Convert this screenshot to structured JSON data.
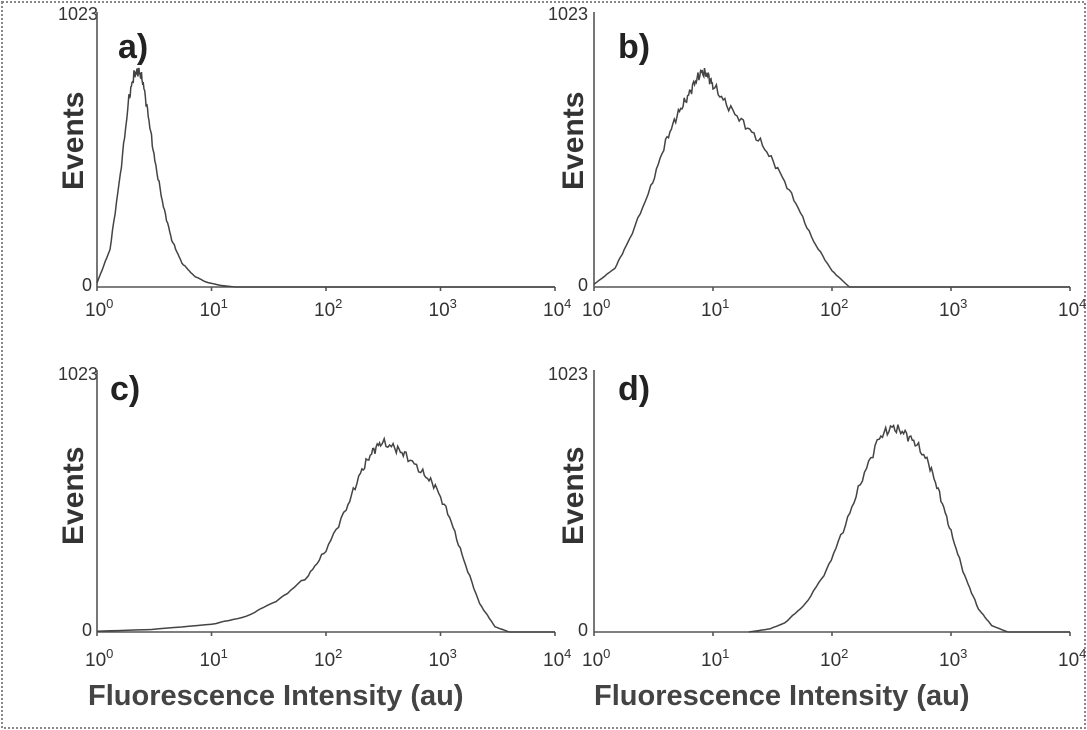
{
  "chart_data": [
    {
      "type": "line",
      "panel_label": "a)",
      "ylabel": "Events",
      "xlabel": "",
      "x_scale": "log",
      "xlim": [
        1,
        10000
      ],
      "ylim": [
        0,
        1023
      ],
      "y_tick_labels": [
        "0",
        "1023"
      ],
      "x_tick_labels": [
        "10",
        "10",
        "10",
        "10",
        "10"
      ],
      "x_tick_exponents": [
        "0",
        "1",
        "2",
        "3",
        "4"
      ],
      "series": [
        {
          "x": [
            1.0,
            1.3,
            1.6,
            1.9,
            2.1,
            2.3,
            2.5,
            2.8,
            3.2,
            3.8,
            4.5,
            5.5,
            7.0,
            9.0,
            12.0,
            16.0
          ],
          "y": [
            15,
            140,
            420,
            700,
            790,
            805,
            770,
            640,
            470,
            300,
            175,
            90,
            42,
            18,
            6,
            0
          ]
        }
      ]
    },
    {
      "type": "line",
      "panel_label": "b)",
      "ylabel": "Events",
      "xlabel": "",
      "x_scale": "log",
      "xlim": [
        1,
        10000
      ],
      "ylim": [
        0,
        1023
      ],
      "y_tick_labels": [
        "0",
        "1023"
      ],
      "x_tick_labels": [
        "10",
        "10",
        "10",
        "10",
        "10"
      ],
      "x_tick_exponents": [
        "0",
        "1",
        "2",
        "3",
        "4"
      ],
      "series": [
        {
          "x": [
            1.0,
            1.5,
            2.0,
            3.0,
            4.0,
            5.0,
            6.0,
            7.0,
            8.0,
            9.0,
            10.0,
            13.0,
            18.0,
            25.0,
            35.0,
            50.0,
            70.0,
            100.0,
            140.0
          ],
          "y": [
            10,
            70,
            180,
            370,
            540,
            640,
            700,
            760,
            800,
            790,
            750,
            680,
            610,
            540,
            440,
            310,
            170,
            60,
            0
          ]
        }
      ]
    },
    {
      "type": "line",
      "panel_label": "c)",
      "ylabel": "Events",
      "xlabel": "Fluorescence Intensity (au)",
      "x_scale": "log",
      "xlim": [
        1,
        10000
      ],
      "ylim": [
        0,
        1023
      ],
      "y_tick_labels": [
        "0",
        "1023"
      ],
      "x_tick_labels": [
        "10",
        "10",
        "10",
        "10",
        "10"
      ],
      "x_tick_exponents": [
        "0",
        "1",
        "2",
        "3",
        "4"
      ],
      "series": [
        {
          "x": [
            1.0,
            3.0,
            10.0,
            20.0,
            40.0,
            70.0,
            100.0,
            150.0,
            200.0,
            250.0,
            300.0,
            400.0,
            500.0,
            700.0,
            900.0,
            1200.0,
            1600.0,
            2200.0,
            3000.0,
            4000.0
          ],
          "y": [
            3,
            10,
            30,
            60,
            130,
            220,
            320,
            480,
            620,
            700,
            740,
            720,
            690,
            620,
            570,
            450,
            280,
            110,
            20,
            0
          ]
        }
      ]
    },
    {
      "type": "line",
      "panel_label": "d)",
      "ylabel": "Events",
      "xlabel": "Fluorescence Intensity (au)",
      "x_scale": "log",
      "xlim": [
        1,
        10000
      ],
      "ylim": [
        0,
        1023
      ],
      "y_tick_labels": [
        "0",
        "1023"
      ],
      "x_tick_labels": [
        "10",
        "10",
        "10",
        "10",
        "10"
      ],
      "x_tick_exponents": [
        "0",
        "1",
        "2",
        "3",
        "4"
      ],
      "series": [
        {
          "x": [
            20.0,
            30.0,
            40.0,
            60.0,
            90.0,
            130.0,
            180.0,
            250.0,
            320.0,
            400.0,
            500.0,
            650.0,
            800.0,
            1000.0,
            1300.0,
            1700.0,
            2200.0,
            3000.0
          ],
          "y": [
            0,
            12,
            35,
            110,
            240,
            420,
            600,
            760,
            800,
            780,
            740,
            660,
            540,
            390,
            220,
            90,
            25,
            0
          ]
        }
      ]
    }
  ]
}
